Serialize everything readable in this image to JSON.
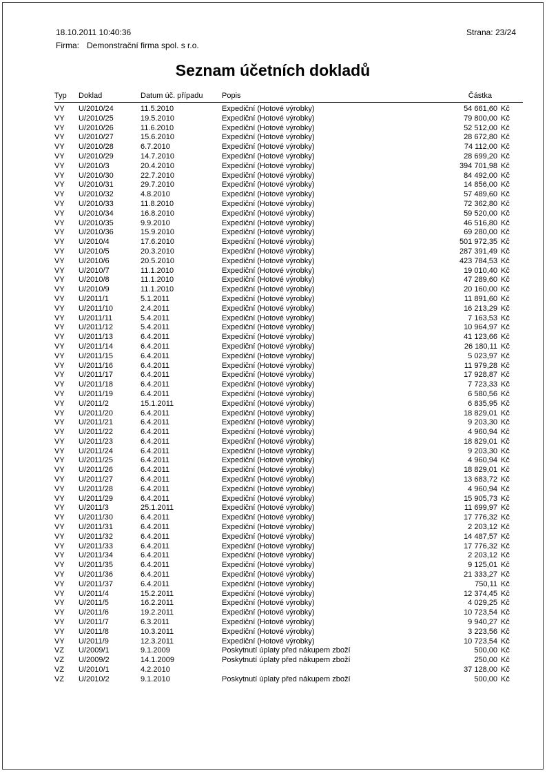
{
  "page": {
    "printed_at": "18.10.2011 10:40:36",
    "page_label": "Strana: 23/24",
    "firm_label": "Firma:",
    "firm_name": "Demonstrační firma spol. s r.o.",
    "title": "Seznam účetních dokladů"
  },
  "table": {
    "headers": {
      "typ": "Typ",
      "doklad": "Doklad",
      "datum": "Datum úč. případu",
      "popis": "Popis",
      "castka": "Částka"
    },
    "currency": "Kč",
    "rows": [
      {
        "typ": "VY",
        "doklad": "U/2010/24",
        "datum": "11.5.2010",
        "popis": "Expediční (Hotové výrobky)",
        "castka": "54 661,60"
      },
      {
        "typ": "VY",
        "doklad": "U/2010/25",
        "datum": "19.5.2010",
        "popis": "Expediční (Hotové výrobky)",
        "castka": "79 800,00"
      },
      {
        "typ": "VY",
        "doklad": "U/2010/26",
        "datum": "11.6.2010",
        "popis": "Expediční (Hotové výrobky)",
        "castka": "52 512,00"
      },
      {
        "typ": "VY",
        "doklad": "U/2010/27",
        "datum": "15.6.2010",
        "popis": "Expediční (Hotové výrobky)",
        "castka": "28 672,80"
      },
      {
        "typ": "VY",
        "doklad": "U/2010/28",
        "datum": "6.7.2010",
        "popis": "Expediční (Hotové výrobky)",
        "castka": "74 112,00"
      },
      {
        "typ": "VY",
        "doklad": "U/2010/29",
        "datum": "14.7.2010",
        "popis": "Expediční (Hotové výrobky)",
        "castka": "28 699,20"
      },
      {
        "typ": "VY",
        "doklad": "U/2010/3",
        "datum": "20.4.2010",
        "popis": "Expediční (Hotové výrobky)",
        "castka": "394 701,98"
      },
      {
        "typ": "VY",
        "doklad": "U/2010/30",
        "datum": "22.7.2010",
        "popis": "Expediční (Hotové výrobky)",
        "castka": "84 492,00"
      },
      {
        "typ": "VY",
        "doklad": "U/2010/31",
        "datum": "29.7.2010",
        "popis": "Expediční (Hotové výrobky)",
        "castka": "14 856,00"
      },
      {
        "typ": "VY",
        "doklad": "U/2010/32",
        "datum": "4.8.2010",
        "popis": "Expediční (Hotové výrobky)",
        "castka": "57 489,60"
      },
      {
        "typ": "VY",
        "doklad": "U/2010/33",
        "datum": "11.8.2010",
        "popis": "Expediční (Hotové výrobky)",
        "castka": "72 362,80"
      },
      {
        "typ": "VY",
        "doklad": "U/2010/34",
        "datum": "16.8.2010",
        "popis": "Expediční (Hotové výrobky)",
        "castka": "59 520,00"
      },
      {
        "typ": "VY",
        "doklad": "U/2010/35",
        "datum": "9.9.2010",
        "popis": "Expediční (Hotové výrobky)",
        "castka": "46 516,80"
      },
      {
        "typ": "VY",
        "doklad": "U/2010/36",
        "datum": "15.9.2010",
        "popis": "Expediční (Hotové výrobky)",
        "castka": "69 280,00"
      },
      {
        "typ": "VY",
        "doklad": "U/2010/4",
        "datum": "17.6.2010",
        "popis": "Expediční (Hotové výrobky)",
        "castka": "501 972,35"
      },
      {
        "typ": "VY",
        "doklad": "U/2010/5",
        "datum": "20.3.2010",
        "popis": "Expediční (Hotové výrobky)",
        "castka": "287 391,49"
      },
      {
        "typ": "VY",
        "doklad": "U/2010/6",
        "datum": "20.5.2010",
        "popis": "Expediční (Hotové výrobky)",
        "castka": "423 784,53"
      },
      {
        "typ": "VY",
        "doklad": "U/2010/7",
        "datum": "11.1.2010",
        "popis": "Expediční (Hotové výrobky)",
        "castka": "19 010,40"
      },
      {
        "typ": "VY",
        "doklad": "U/2010/8",
        "datum": "11.1.2010",
        "popis": "Expediční (Hotové výrobky)",
        "castka": "47 289,60"
      },
      {
        "typ": "VY",
        "doklad": "U/2010/9",
        "datum": "11.1.2010",
        "popis": "Expediční (Hotové výrobky)",
        "castka": "20 160,00"
      },
      {
        "typ": "VY",
        "doklad": "U/2011/1",
        "datum": "5.1.2011",
        "popis": "Expediční (Hotové výrobky)",
        "castka": "11 891,60"
      },
      {
        "typ": "VY",
        "doklad": "U/2011/10",
        "datum": "2.4.2011",
        "popis": "Expediční (Hotové výrobky)",
        "castka": "16 213,29"
      },
      {
        "typ": "VY",
        "doklad": "U/2011/11",
        "datum": "5.4.2011",
        "popis": "Expediční (Hotové výrobky)",
        "castka": "7 163,53"
      },
      {
        "typ": "VY",
        "doklad": "U/2011/12",
        "datum": "5.4.2011",
        "popis": "Expediční (Hotové výrobky)",
        "castka": "10 964,97"
      },
      {
        "typ": "VY",
        "doklad": "U/2011/13",
        "datum": "6.4.2011",
        "popis": "Expediční (Hotové výrobky)",
        "castka": "41 123,66"
      },
      {
        "typ": "VY",
        "doklad": "U/2011/14",
        "datum": "6.4.2011",
        "popis": "Expediční (Hotové výrobky)",
        "castka": "26 180,11"
      },
      {
        "typ": "VY",
        "doklad": "U/2011/15",
        "datum": "6.4.2011",
        "popis": "Expediční (Hotové výrobky)",
        "castka": "5 023,97"
      },
      {
        "typ": "VY",
        "doklad": "U/2011/16",
        "datum": "6.4.2011",
        "popis": "Expediční (Hotové výrobky)",
        "castka": "11 979,28"
      },
      {
        "typ": "VY",
        "doklad": "U/2011/17",
        "datum": "6.4.2011",
        "popis": "Expediční (Hotové výrobky)",
        "castka": "17 928,87"
      },
      {
        "typ": "VY",
        "doklad": "U/2011/18",
        "datum": "6.4.2011",
        "popis": "Expediční (Hotové výrobky)",
        "castka": "7 723,33"
      },
      {
        "typ": "VY",
        "doklad": "U/2011/19",
        "datum": "6.4.2011",
        "popis": "Expediční (Hotové výrobky)",
        "castka": "6 580,56"
      },
      {
        "typ": "VY",
        "doklad": "U/2011/2",
        "datum": "15.1.2011",
        "popis": "Expediční (Hotové výrobky)",
        "castka": "6 835,95"
      },
      {
        "typ": "VY",
        "doklad": "U/2011/20",
        "datum": "6.4.2011",
        "popis": "Expediční (Hotové výrobky)",
        "castka": "18 829,01"
      },
      {
        "typ": "VY",
        "doklad": "U/2011/21",
        "datum": "6.4.2011",
        "popis": "Expediční (Hotové výrobky)",
        "castka": "9 203,30"
      },
      {
        "typ": "VY",
        "doklad": "U/2011/22",
        "datum": "6.4.2011",
        "popis": "Expediční (Hotové výrobky)",
        "castka": "4 960,94"
      },
      {
        "typ": "VY",
        "doklad": "U/2011/23",
        "datum": "6.4.2011",
        "popis": "Expediční (Hotové výrobky)",
        "castka": "18 829,01"
      },
      {
        "typ": "VY",
        "doklad": "U/2011/24",
        "datum": "6.4.2011",
        "popis": "Expediční (Hotové výrobky)",
        "castka": "9 203,30"
      },
      {
        "typ": "VY",
        "doklad": "U/2011/25",
        "datum": "6.4.2011",
        "popis": "Expediční (Hotové výrobky)",
        "castka": "4 960,94"
      },
      {
        "typ": "VY",
        "doklad": "U/2011/26",
        "datum": "6.4.2011",
        "popis": "Expediční (Hotové výrobky)",
        "castka": "18 829,01"
      },
      {
        "typ": "VY",
        "doklad": "U/2011/27",
        "datum": "6.4.2011",
        "popis": "Expediční (Hotové výrobky)",
        "castka": "13 683,72"
      },
      {
        "typ": "VY",
        "doklad": "U/2011/28",
        "datum": "6.4.2011",
        "popis": "Expediční (Hotové výrobky)",
        "castka": "4 960,94"
      },
      {
        "typ": "VY",
        "doklad": "U/2011/29",
        "datum": "6.4.2011",
        "popis": "Expediční (Hotové výrobky)",
        "castka": "15 905,73"
      },
      {
        "typ": "VY",
        "doklad": "U/2011/3",
        "datum": "25.1.2011",
        "popis": "Expediční (Hotové výrobky)",
        "castka": "11 699,97"
      },
      {
        "typ": "VY",
        "doklad": "U/2011/30",
        "datum": "6.4.2011",
        "popis": "Expediční (Hotové výrobky)",
        "castka": "17 776,32"
      },
      {
        "typ": "VY",
        "doklad": "U/2011/31",
        "datum": "6.4.2011",
        "popis": "Expediční (Hotové výrobky)",
        "castka": "2 203,12"
      },
      {
        "typ": "VY",
        "doklad": "U/2011/32",
        "datum": "6.4.2011",
        "popis": "Expediční (Hotové výrobky)",
        "castka": "14 487,57"
      },
      {
        "typ": "VY",
        "doklad": "U/2011/33",
        "datum": "6.4.2011",
        "popis": "Expediční (Hotové výrobky)",
        "castka": "17 776,32"
      },
      {
        "typ": "VY",
        "doklad": "U/2011/34",
        "datum": "6.4.2011",
        "popis": "Expediční (Hotové výrobky)",
        "castka": "2 203,12"
      },
      {
        "typ": "VY",
        "doklad": "U/2011/35",
        "datum": "6.4.2011",
        "popis": "Expediční (Hotové výrobky)",
        "castka": "9 125,01"
      },
      {
        "typ": "VY",
        "doklad": "U/2011/36",
        "datum": "6.4.2011",
        "popis": "Expediční (Hotové výrobky)",
        "castka": "21 333,27"
      },
      {
        "typ": "VY",
        "doklad": "U/2011/37",
        "datum": "6.4.2011",
        "popis": "Expediční (Hotové výrobky)",
        "castka": "750,11"
      },
      {
        "typ": "VY",
        "doklad": "U/2011/4",
        "datum": "15.2.2011",
        "popis": "Expediční (Hotové výrobky)",
        "castka": "12 374,45"
      },
      {
        "typ": "VY",
        "doklad": "U/2011/5",
        "datum": "16.2.2011",
        "popis": "Expediční (Hotové výrobky)",
        "castka": "4 029,25"
      },
      {
        "typ": "VY",
        "doklad": "U/2011/6",
        "datum": "19.2.2011",
        "popis": "Expediční (Hotové výrobky)",
        "castka": "10 723,54"
      },
      {
        "typ": "VY",
        "doklad": "U/2011/7",
        "datum": "6.3.2011",
        "popis": "Expediční (Hotové výrobky)",
        "castka": "9 940,27"
      },
      {
        "typ": "VY",
        "doklad": "U/2011/8",
        "datum": "10.3.2011",
        "popis": "Expediční (Hotové výrobky)",
        "castka": "3 223,56"
      },
      {
        "typ": "VY",
        "doklad": "U/2011/9",
        "datum": "12.3.2011",
        "popis": "Expediční (Hotové výrobky)",
        "castka": "10 723,54"
      },
      {
        "typ": "VZ",
        "doklad": "U/2009/1",
        "datum": "9.1.2009",
        "popis": "Poskytnutí úplaty před nákupem zboží",
        "castka": "500,00"
      },
      {
        "typ": "VZ",
        "doklad": "U/2009/2",
        "datum": "14.1.2009",
        "popis": "Poskytnutí úplaty před nákupem zboží",
        "castka": "250,00"
      },
      {
        "typ": "VZ",
        "doklad": "U/2010/1",
        "datum": "4.2.2010",
        "popis": "",
        "castka": "37 128,00"
      },
      {
        "typ": "VZ",
        "doklad": "U/2010/2",
        "datum": "9.1.2010",
        "popis": "Poskytnutí úplaty před nákupem zboží",
        "castka": "500,00"
      }
    ]
  }
}
